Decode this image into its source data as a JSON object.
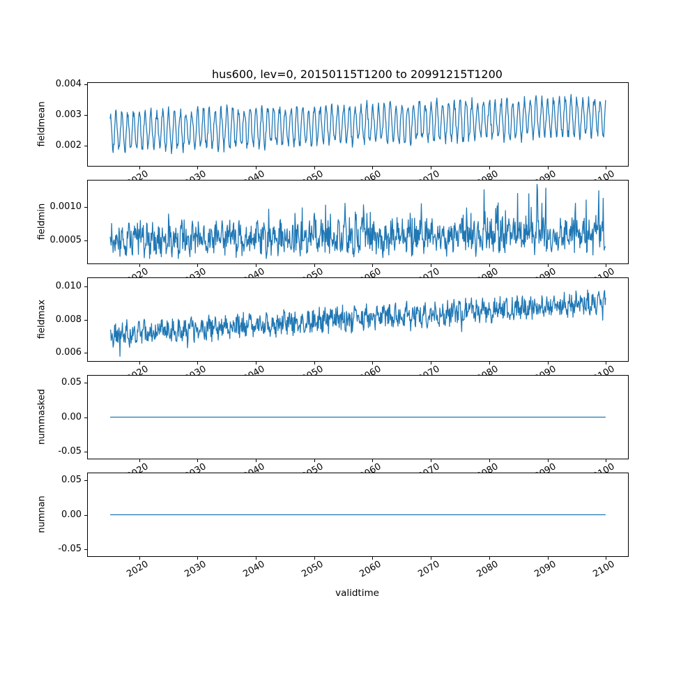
{
  "figure": {
    "title": "hus600, lev=0, 20150115T1200 to 20991215T1200",
    "background": "#ffffff",
    "line_color": "#1f77b4"
  },
  "x_axis": {
    "label": "validtime",
    "xlim": [
      2011.2,
      2103.8
    ],
    "ticks": [
      {
        "v": 2020,
        "label": "2020"
      },
      {
        "v": 2030,
        "label": "2030"
      },
      {
        "v": 2040,
        "label": "2040"
      },
      {
        "v": 2050,
        "label": "2050"
      },
      {
        "v": 2060,
        "label": "2060"
      },
      {
        "v": 2070,
        "label": "2070"
      },
      {
        "v": 2080,
        "label": "2080"
      },
      {
        "v": 2090,
        "label": "2090"
      },
      {
        "v": 2100,
        "label": "2100"
      }
    ]
  },
  "chart_data": [
    {
      "type": "line",
      "name": "fieldmean",
      "ylabel": "fieldmean",
      "ylim": [
        0.00135,
        0.00405
      ],
      "yticks": [
        {
          "v": 0.002,
          "label": "0.002"
        },
        {
          "v": 0.003,
          "label": "0.003"
        },
        {
          "v": 0.004,
          "label": "0.004"
        }
      ],
      "x_start": 2015.04,
      "x_end": 2099.96,
      "points_per_year": 12,
      "gen": {
        "base_start": 0.00245,
        "base_end": 0.00297,
        "seasonal_amp": 0.0006,
        "noise_amp": 0.00017,
        "phase": 0.21,
        "seed": 7
      }
    },
    {
      "type": "line",
      "name": "fieldmin",
      "ylabel": "fieldmin",
      "ylim": [
        0.00015,
        0.0014
      ],
      "yticks": [
        {
          "v": 0.0005,
          "label": "0.0005"
        },
        {
          "v": 0.001,
          "label": "0.0010"
        }
      ],
      "x_start": 2015.04,
      "x_end": 2099.96,
      "points_per_year": 12,
      "gen": {
        "base_start": 0.0005,
        "base_end": 0.00058,
        "seasonal_amp": 0.0001,
        "noise_amp": 0.00021,
        "phase": 0.0,
        "spike_prob": 0.06,
        "spike_amp": 0.0005,
        "spike_scale_start": 0.5,
        "spike_scale_end": 1.5,
        "seed": 13
      }
    },
    {
      "type": "line",
      "name": "fieldmax",
      "ylabel": "fieldmax",
      "ylim": [
        0.0055,
        0.0105
      ],
      "yticks": [
        {
          "v": 0.006,
          "label": "0.006"
        },
        {
          "v": 0.008,
          "label": "0.008"
        },
        {
          "v": 0.01,
          "label": "0.010"
        }
      ],
      "x_start": 2015.04,
      "x_end": 2099.96,
      "points_per_year": 12,
      "gen": {
        "base_start": 0.0071,
        "base_end": 0.00905,
        "seasonal_amp": 0.00025,
        "noise_amp": 0.00062,
        "phase": 0.35,
        "spike_prob": 0.03,
        "spike_amp": -0.0013,
        "spike_scale_start": 1.2,
        "spike_scale_end": 0.6,
        "seed": 42
      }
    },
    {
      "type": "line",
      "name": "nummasked",
      "ylabel": "nummasked",
      "ylim": [
        -0.06,
        0.06
      ],
      "yticks": [
        {
          "v": -0.05,
          "label": "-0.05"
        },
        {
          "v": 0.0,
          "label": "0.00"
        },
        {
          "v": 0.05,
          "label": "0.05"
        }
      ],
      "x_start": 2015.04,
      "x_end": 2099.96,
      "points_per_year": 12,
      "gen": {
        "constant": 0
      }
    },
    {
      "type": "line",
      "name": "numnan",
      "ylabel": "numnan",
      "ylim": [
        -0.06,
        0.06
      ],
      "yticks": [
        {
          "v": -0.05,
          "label": "-0.05"
        },
        {
          "v": 0.0,
          "label": "0.00"
        },
        {
          "v": 0.05,
          "label": "0.05"
        }
      ],
      "x_start": 2015.04,
      "x_end": 2099.96,
      "points_per_year": 12,
      "gen": {
        "constant": 0
      }
    }
  ]
}
